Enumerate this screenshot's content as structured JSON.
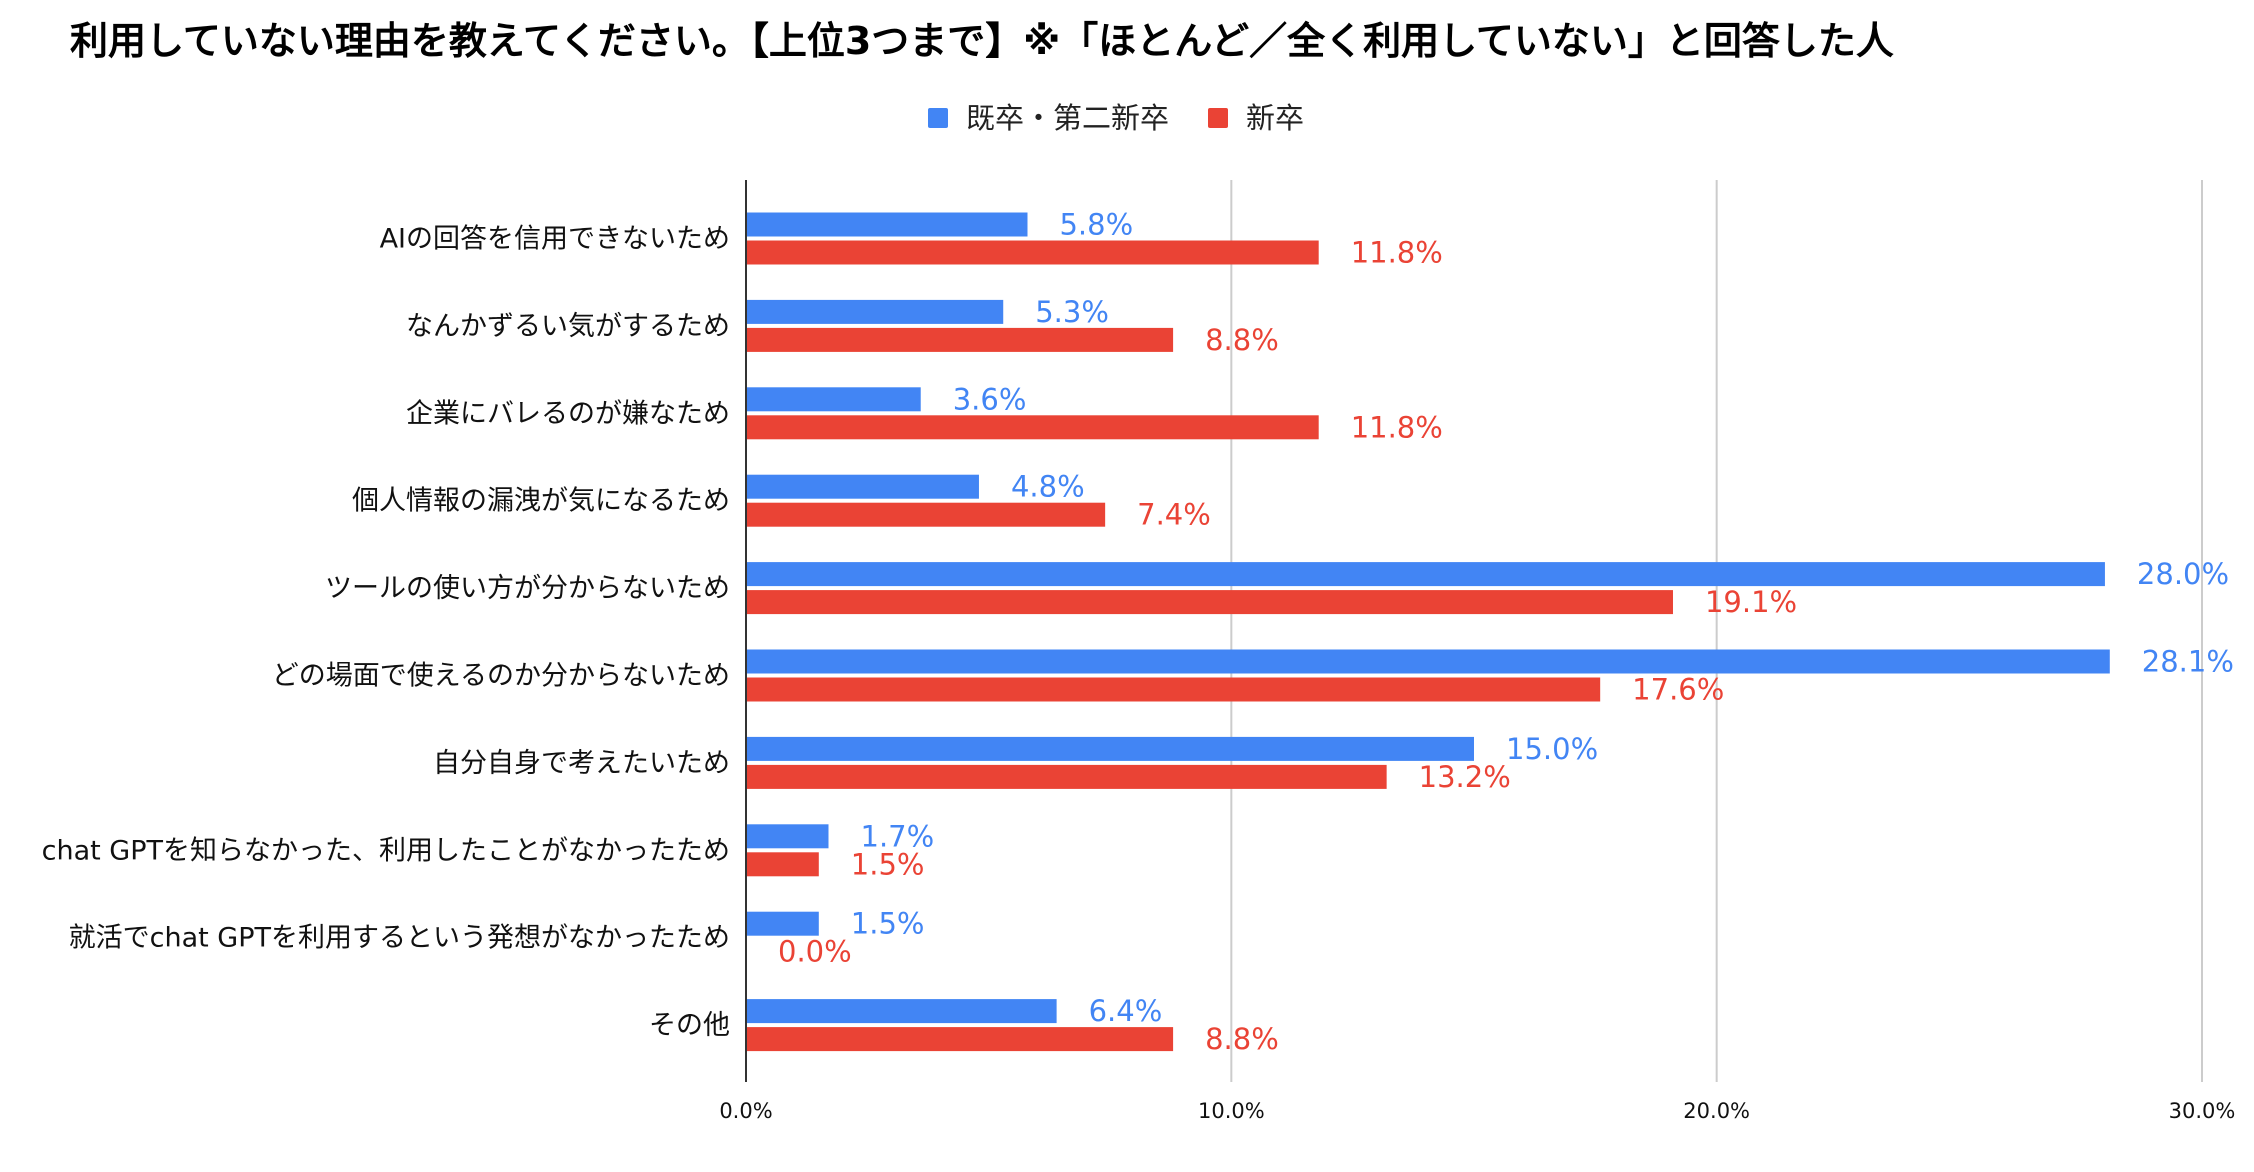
{
  "chart_data": {
    "type": "bar",
    "orientation": "horizontal",
    "title": "利用していない理由を教えてください。【上位3つまで】※「ほとんど／全く利用していない」と回答した人",
    "categories": [
      "AIの回答を信用できないため",
      "なんかずるい気がするため",
      "企業にバレるのが嫌なため",
      "個人情報の漏洩が気になるため",
      "ツールの使い方が分からないため",
      "どの場面で使えるのか分からないため",
      "自分自身で考えたいため",
      "chat GPTを知らなかった、利用したことがなかったため",
      "就活でchat GPTを利用するという発想がなかったため",
      "その他"
    ],
    "series": [
      {
        "name": "既卒・第二新卒",
        "color": "#4285F4",
        "values": [
          5.8,
          5.3,
          3.6,
          4.8,
          28.0,
          28.1,
          15.0,
          1.7,
          1.5,
          6.4
        ],
        "labels": [
          "5.8%",
          "5.3%",
          "3.6%",
          "4.8%",
          "28.0%",
          "28.1%",
          "15.0%",
          "1.7%",
          "1.5%",
          "6.4%"
        ]
      },
      {
        "name": "新卒",
        "color": "#EA4335",
        "values": [
          11.8,
          8.8,
          11.8,
          7.4,
          19.1,
          17.6,
          13.2,
          1.5,
          0.0,
          8.8
        ],
        "labels": [
          "11.8%",
          "8.8%",
          "11.8%",
          "7.4%",
          "19.1%",
          "17.6%",
          "13.2%",
          "1.5%",
          "0.0%",
          "8.8%"
        ]
      }
    ],
    "xlim": [
      0,
      30
    ],
    "xticks": [
      0,
      10,
      20,
      30
    ],
    "xtick_labels": [
      "0.0%",
      "10.0%",
      "20.0%",
      "30.0%"
    ],
    "xlabel": "",
    "ylabel": "",
    "grid": true,
    "legend_position": "top-center"
  }
}
